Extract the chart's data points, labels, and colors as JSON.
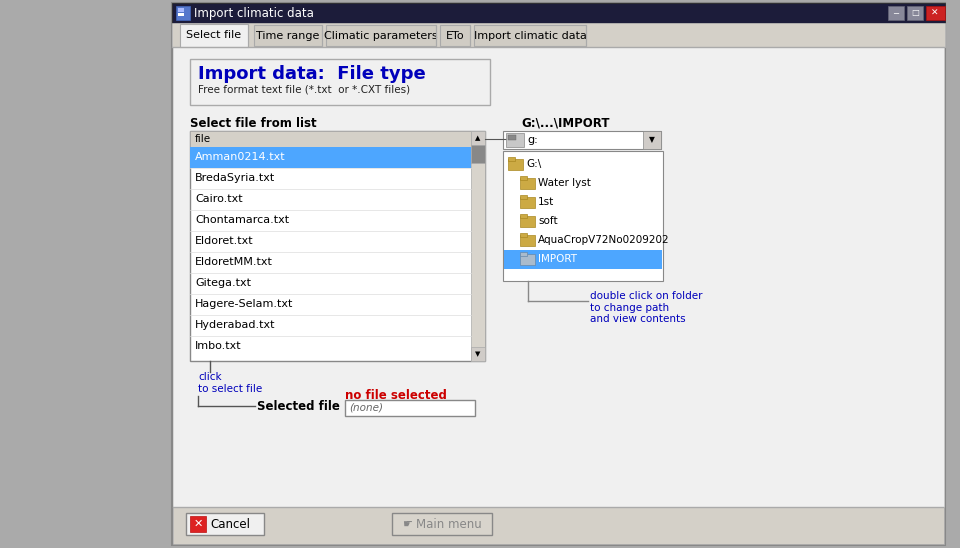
{
  "title_bar": "Import climatic data",
  "tabs": [
    "Select file",
    "Time range",
    "Climatic parameters",
    "ETo",
    "Import climatic data"
  ],
  "active_tab": 0,
  "section_title": "Import data:  File type",
  "section_subtitle": "Free format text file (*.txt  or *.CXT files)",
  "list_label": "Select file from list",
  "list_header": "file",
  "list_items": [
    "Amman0214.txt",
    "BredaSyria.txt",
    "Cairo.txt",
    "Chontamarca.txt",
    "Eldoret.txt",
    "EldoretMM.txt",
    "Gitega.txt",
    "Hagere-Selam.txt",
    "Hyderabad.txt",
    "Imbo.txt"
  ],
  "selected_item": "Amman0214.txt",
  "path_label": "G:\\...\\IMPORT",
  "drive_label": "g:",
  "tree_items": [
    {
      "label": "G:\\",
      "indent": 0,
      "selected": false
    },
    {
      "label": "Water lyst",
      "indent": 1,
      "selected": false
    },
    {
      "label": "1st",
      "indent": 1,
      "selected": false
    },
    {
      "label": "soft",
      "indent": 1,
      "selected": false
    },
    {
      "label": "AquaCropV72No0209202",
      "indent": 1,
      "selected": false
    },
    {
      "label": "IMPORT",
      "indent": 1,
      "selected": true
    }
  ],
  "hint_text": "double click on folder\nto change path\nand view contents",
  "click_label": "click\nto select file",
  "selected_file_label": "Selected file",
  "no_file_label": "no file selected",
  "selected_file_value": "(none)",
  "btn_cancel": "Cancel",
  "btn_main": "Main menu",
  "list_selected_bg": "#4da6ff",
  "list_selected_fg": "#ffffff",
  "tree_selected_bg": "#4da6ff",
  "section_title_color": "#0000bb",
  "no_file_color": "#cc0000",
  "hint_color": "#0000bb",
  "click_color": "#0000bb",
  "outer_bg": "#aaaaaa",
  "dialog_bg": "#f0f0f0",
  "titlebar_bg": "#1c1c3a",
  "button_bar_bg": "#d4d0c8",
  "tab_inactive_bg": "#d0ccc4",
  "tab_active_bg": "#f0f0f0"
}
